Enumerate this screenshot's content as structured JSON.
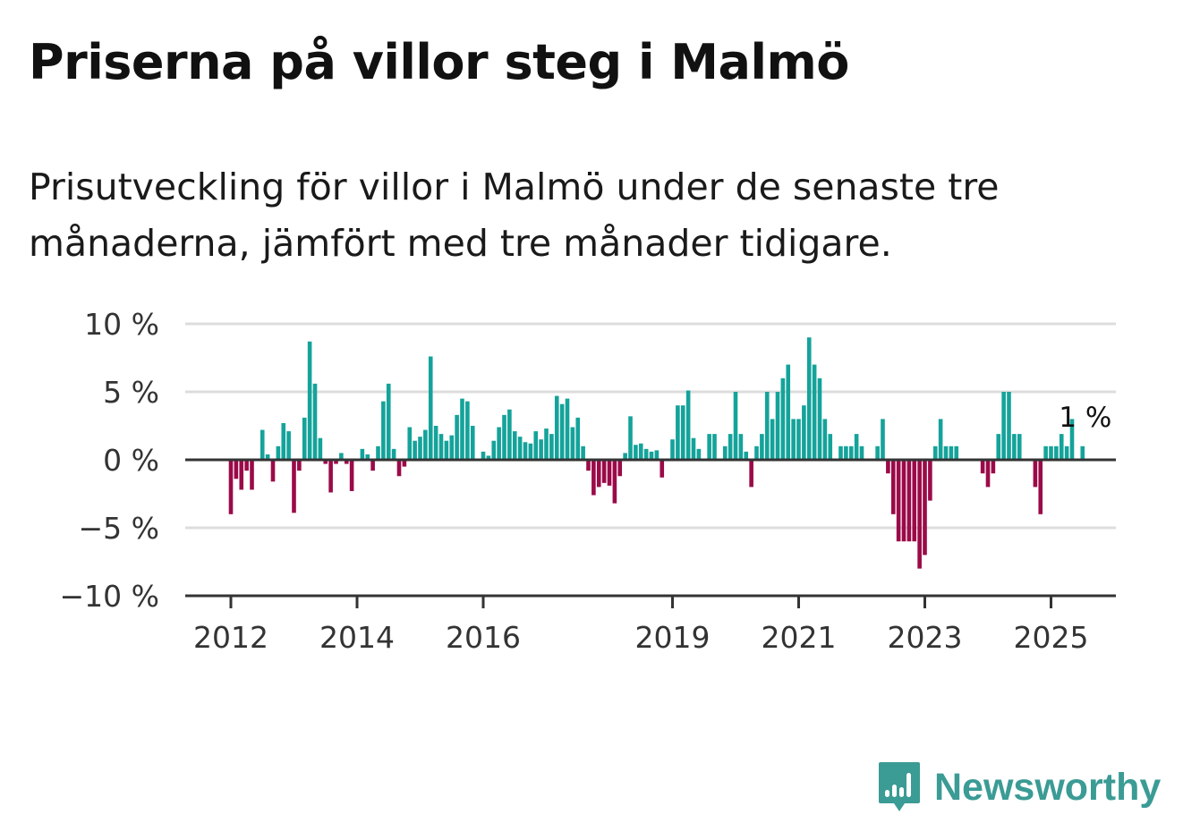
{
  "title": "Priserna på villor steg i Malmö",
  "subtitle": "Prisutveckling för villor i Malmö under de senaste tre månaderna, jämfört med tre månader tidigare.",
  "brand": {
    "name": "Newsworthy",
    "color": "#3b9b95",
    "icon": "bar-chart-speech-bubble-icon"
  },
  "colors": {
    "positive": "#14a39a",
    "negative": "#9b0a48",
    "grid": "#dddddd",
    "axis": "#333333"
  },
  "chart_data": {
    "type": "bar",
    "title": "Priserna på villor steg i Malmö",
    "subtitle": "Prisutveckling för villor i Malmö under de senaste tre månaderna, jämfört med tre månader tidigare.",
    "xlabel": "",
    "ylabel": "",
    "ylim": [
      -10,
      10
    ],
    "yticks": [
      10,
      5,
      0,
      -5,
      -10
    ],
    "ytick_labels": [
      "10 %",
      "5 %",
      "0 %",
      "−5 %",
      "−10 %"
    ],
    "xticks": [
      2012,
      2014,
      2016,
      2019,
      2021,
      2023,
      2025
    ],
    "xtick_labels": [
      "2012",
      "2014",
      "2016",
      "2019",
      "2021",
      "2023",
      "2025"
    ],
    "grid": true,
    "x_start": "2012-01",
    "annotation": {
      "text": "1 %"
    },
    "values": [
      -4,
      -1.4,
      -2.2,
      -0.8,
      -2.2,
      null,
      2.2,
      0.4,
      -1.6,
      1,
      2.7,
      2.1,
      -3.9,
      -0.8,
      3.1,
      8.7,
      5.6,
      1.6,
      -0.3,
      -2.4,
      -0.3,
      0.5,
      -0.3,
      -2.3,
      null,
      0.8,
      0.4,
      -0.8,
      1,
      4.3,
      5.6,
      0.8,
      -1.2,
      -0.5,
      2.4,
      1.4,
      1.7,
      2.2,
      7.6,
      2.5,
      1.9,
      1.4,
      1.8,
      3.3,
      4.5,
      4.3,
      2.5,
      null,
      0.6,
      0.3,
      1.4,
      2.4,
      3.3,
      3.7,
      2.1,
      1.7,
      1.3,
      1.2,
      2.1,
      1.5,
      2.3,
      1.9,
      4.7,
      4.1,
      4.5,
      2.4,
      3.1,
      1,
      -0.8,
      -2.6,
      -2.0,
      -1.7,
      -1.9,
      -3.2,
      -1.2,
      0.5,
      3.2,
      1.1,
      1.2,
      0.8,
      0.6,
      0.7,
      -1.3,
      null,
      1.5,
      4,
      4,
      5.1,
      1.6,
      0.8,
      null,
      1.9,
      1.9,
      null,
      1,
      1.9,
      5,
      1.9,
      0.6,
      -2,
      1,
      1.9,
      5,
      3,
      5,
      6,
      7,
      3,
      3,
      4,
      9,
      7,
      6,
      3,
      1.9,
      null,
      1,
      1,
      1,
      1.9,
      1,
      null,
      null,
      1,
      3,
      -1,
      -4,
      -6,
      -6,
      -6,
      -6,
      -8,
      -7,
      -3,
      1,
      3,
      1,
      1,
      1,
      null,
      null,
      null,
      null,
      -1,
      -2,
      -1,
      1.9,
      5,
      5,
      1.9,
      1.9,
      null,
      null,
      -2,
      -4,
      1,
      1,
      1,
      1.9,
      1,
      3,
      null,
      1
    ]
  }
}
